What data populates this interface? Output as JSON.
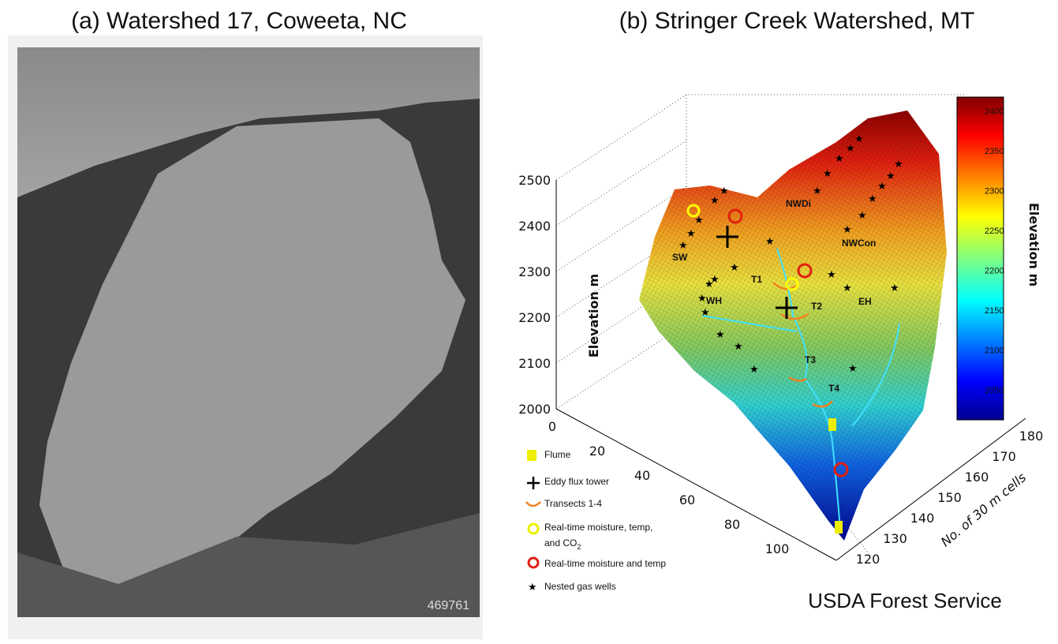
{
  "panel_a": {
    "title": "(a)  Watershed 17, Coweeta, NC",
    "photo_number": "469761"
  },
  "panel_b": {
    "title": "(b) Stringer Creek Watershed, MT",
    "z_axis_label": "Elevation m",
    "z_ticks": [
      "2000",
      "2100",
      "2200",
      "2300",
      "2400",
      "2500"
    ],
    "x_ticks": [
      "0",
      "20",
      "40",
      "60",
      "80",
      "100"
    ],
    "y_ticks": [
      "120",
      "130",
      "140",
      "150",
      "160",
      "170",
      "180"
    ],
    "y_axis_label": "No. of 30 m cells",
    "colorbar_label": "Elevation m",
    "colorbar_ticks": [
      "2050",
      "2100",
      "2150",
      "2200",
      "2250",
      "2300",
      "2350",
      "2400"
    ],
    "site_labels": [
      "SW",
      "NWDi",
      "NWCon",
      "T1",
      "T2",
      "T3",
      "T4",
      "WH",
      "EH"
    ],
    "legend": [
      "Flume",
      "Eddy flux tower",
      "Transects 1-4",
      "Real-time moisture, temp,",
      "and CO",
      "2",
      "Real-time moisture and temp",
      "Nested gas wells"
    ],
    "credit": "USDA Forest Service"
  }
}
